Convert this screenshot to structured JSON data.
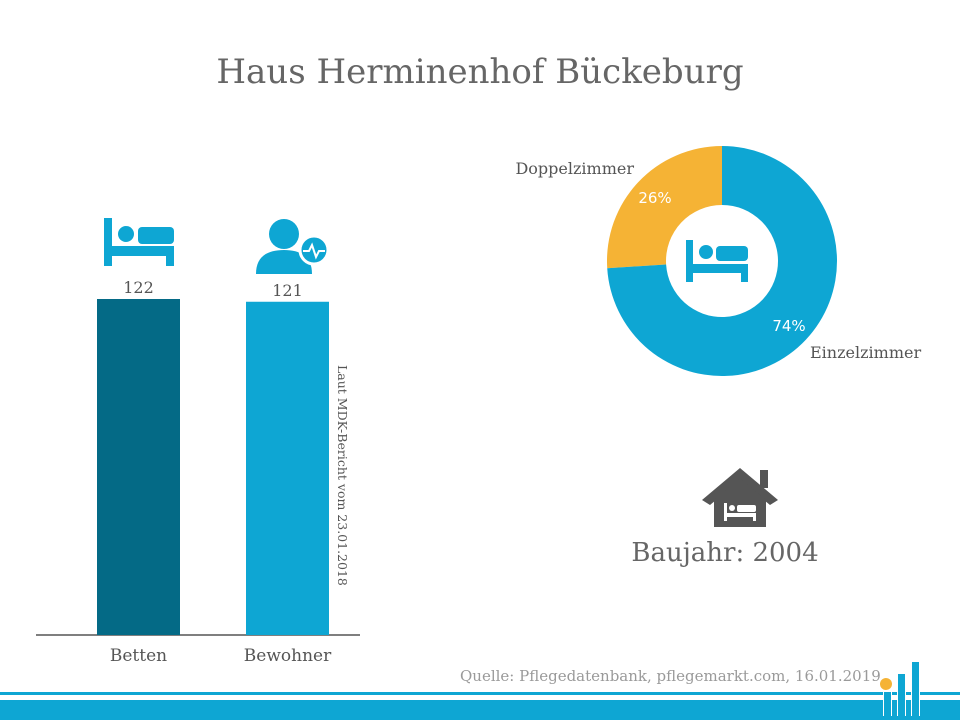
{
  "page": {
    "title": "Haus Herminenhof Bückeburg"
  },
  "chart_data": [
    {
      "type": "bar",
      "categories": [
        "Betten",
        "Bewohner"
      ],
      "values": [
        122,
        121
      ],
      "colors": [
        "#046a86",
        "#0ea6d3"
      ],
      "icons": [
        "bed-icon",
        "resident-health-icon"
      ],
      "note": "Laut MDK-Bericht vom 23.01.2018"
    },
    {
      "type": "pie",
      "labels": [
        "Doppelzimmer",
        "Einzelzimmer"
      ],
      "values": [
        26,
        74
      ],
      "value_labels": [
        "26%",
        "74%"
      ],
      "colors": [
        "#f5b335",
        "#0ea6d3"
      ],
      "center_icon": "bed-icon"
    }
  ],
  "info": {
    "icon": "house-bed-icon",
    "baujahr": "Baujahr: 2004"
  },
  "footer": {
    "source": "Quelle: Pflegedatenbank, pflegemarkt.com, 16.01.2019",
    "logo": "pflegemarkt-logo-icon"
  }
}
